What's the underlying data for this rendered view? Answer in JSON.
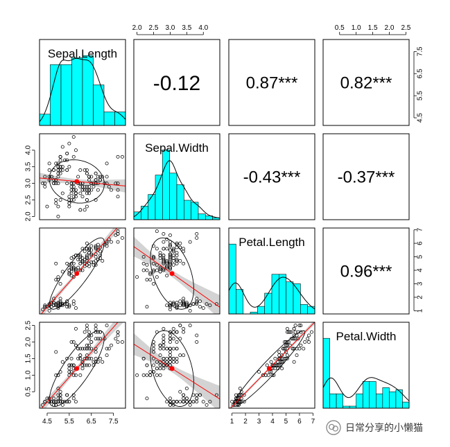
{
  "chart_data": {
    "type": "scatter-matrix",
    "variables": [
      "Sepal.Length",
      "Sepal.Width",
      "Petal.Length",
      "Petal.Width"
    ],
    "ranges": [
      [
        4.3,
        7.9
      ],
      [
        2.0,
        4.4
      ],
      [
        1.0,
        6.9
      ],
      [
        0.1,
        2.5
      ]
    ],
    "ticks": [
      [
        "4.5",
        "5.5",
        "6.5",
        "7.5"
      ],
      [
        "2.0",
        "2.5",
        "3.0",
        "3.5",
        "4.0"
      ],
      [
        "1",
        "2",
        "3",
        "4",
        "5",
        "6",
        "7"
      ],
      [
        "0.5",
        "1.0",
        "1.5",
        "2.0",
        "2.5"
      ]
    ],
    "correlations": [
      {
        "row": 0,
        "col": 1,
        "label": "-0.12"
      },
      {
        "row": 0,
        "col": 2,
        "label": "0.87***"
      },
      {
        "row": 0,
        "col": 3,
        "label": "0.82***"
      },
      {
        "row": 1,
        "col": 2,
        "label": "-0.43***"
      },
      {
        "row": 1,
        "col": 3,
        "label": "-0.37***"
      },
      {
        "row": 2,
        "col": 3,
        "label": "0.96***"
      }
    ],
    "means": [
      5.843,
      3.057,
      3.758,
      1.199
    ],
    "histograms": [
      {
        "breaks": [
          4.0,
          4.5,
          5.0,
          5.5,
          6.0,
          6.5,
          7.0,
          7.5,
          8.0
        ],
        "counts": [
          5,
          27,
          27,
          30,
          31,
          18,
          6,
          6
        ]
      },
      {
        "breaks": [
          2.0,
          2.2,
          2.4,
          2.6,
          2.8,
          3.0,
          3.2,
          3.4,
          3.6,
          3.8,
          4.0,
          4.2,
          4.4
        ],
        "counts": [
          4,
          7,
          13,
          23,
          36,
          24,
          18,
          10,
          9,
          3,
          2,
          1
        ]
      },
      {
        "breaks": [
          1.0,
          1.5,
          2.0,
          2.5,
          3.0,
          3.5,
          4.0,
          4.5,
          5.0,
          5.5,
          6.0,
          6.5,
          7.0
        ],
        "counts": [
          37,
          13,
          0,
          1,
          4,
          11,
          21,
          21,
          17,
          16,
          5,
          4
        ]
      },
      {
        "breaks": [
          0.0,
          0.2,
          0.4,
          0.6,
          0.8,
          1.0,
          1.2,
          1.4,
          1.6,
          1.8,
          2.0,
          2.2,
          2.4,
          2.6
        ],
        "counts": [
          34,
          7,
          7,
          1,
          1,
          7,
          13,
          13,
          7,
          10,
          8,
          9,
          3
        ]
      }
    ],
    "histogram_color": "#00FFFF",
    "smooth_color": "#FF0000",
    "mean_point_color": "#FF0000",
    "ci_band_color": "#D3D3D3",
    "data": [
      [
        5.1,
        3.5,
        1.4,
        0.2
      ],
      [
        4.9,
        3.0,
        1.4,
        0.2
      ],
      [
        4.7,
        3.2,
        1.3,
        0.2
      ],
      [
        4.6,
        3.1,
        1.5,
        0.2
      ],
      [
        5.0,
        3.6,
        1.4,
        0.2
      ],
      [
        5.4,
        3.9,
        1.7,
        0.4
      ],
      [
        4.6,
        3.4,
        1.4,
        0.3
      ],
      [
        5.0,
        3.4,
        1.5,
        0.2
      ],
      [
        4.4,
        2.9,
        1.4,
        0.2
      ],
      [
        4.9,
        3.1,
        1.5,
        0.1
      ],
      [
        5.4,
        3.7,
        1.5,
        0.2
      ],
      [
        4.8,
        3.4,
        1.6,
        0.2
      ],
      [
        4.8,
        3.0,
        1.4,
        0.1
      ],
      [
        4.3,
        3.0,
        1.1,
        0.1
      ],
      [
        5.8,
        4.0,
        1.2,
        0.2
      ],
      [
        5.7,
        4.4,
        1.5,
        0.4
      ],
      [
        5.4,
        3.9,
        1.3,
        0.4
      ],
      [
        5.1,
        3.5,
        1.4,
        0.3
      ],
      [
        5.7,
        3.8,
        1.7,
        0.3
      ],
      [
        5.1,
        3.8,
        1.5,
        0.3
      ],
      [
        5.4,
        3.4,
        1.7,
        0.2
      ],
      [
        5.1,
        3.7,
        1.5,
        0.4
      ],
      [
        4.6,
        3.6,
        1.0,
        0.2
      ],
      [
        5.1,
        3.3,
        1.7,
        0.5
      ],
      [
        4.8,
        3.4,
        1.9,
        0.2
      ],
      [
        5.0,
        3.0,
        1.6,
        0.2
      ],
      [
        5.0,
        3.4,
        1.6,
        0.4
      ],
      [
        5.2,
        3.5,
        1.5,
        0.2
      ],
      [
        5.2,
        3.4,
        1.4,
        0.2
      ],
      [
        4.7,
        3.2,
        1.6,
        0.2
      ],
      [
        4.8,
        3.1,
        1.6,
        0.2
      ],
      [
        5.4,
        3.4,
        1.5,
        0.4
      ],
      [
        5.2,
        4.1,
        1.5,
        0.1
      ],
      [
        5.5,
        4.2,
        1.4,
        0.2
      ],
      [
        4.9,
        3.1,
        1.5,
        0.2
      ],
      [
        5.0,
        3.2,
        1.2,
        0.2
      ],
      [
        5.5,
        3.5,
        1.3,
        0.2
      ],
      [
        4.9,
        3.6,
        1.4,
        0.1
      ],
      [
        4.4,
        3.0,
        1.3,
        0.2
      ],
      [
        5.1,
        3.4,
        1.5,
        0.2
      ],
      [
        5.0,
        3.5,
        1.3,
        0.3
      ],
      [
        4.5,
        2.3,
        1.3,
        0.3
      ],
      [
        4.4,
        3.2,
        1.3,
        0.2
      ],
      [
        5.0,
        3.5,
        1.6,
        0.6
      ],
      [
        5.1,
        3.8,
        1.9,
        0.4
      ],
      [
        4.8,
        3.0,
        1.4,
        0.3
      ],
      [
        5.1,
        3.8,
        1.6,
        0.2
      ],
      [
        4.6,
        3.2,
        1.4,
        0.2
      ],
      [
        5.3,
        3.7,
        1.5,
        0.2
      ],
      [
        5.0,
        3.3,
        1.4,
        0.2
      ],
      [
        7.0,
        3.2,
        4.7,
        1.4
      ],
      [
        6.4,
        3.2,
        4.5,
        1.5
      ],
      [
        6.9,
        3.1,
        4.9,
        1.5
      ],
      [
        5.5,
        2.3,
        4.0,
        1.3
      ],
      [
        6.5,
        2.8,
        4.6,
        1.5
      ],
      [
        5.7,
        2.8,
        4.5,
        1.3
      ],
      [
        6.3,
        3.3,
        4.7,
        1.6
      ],
      [
        4.9,
        2.4,
        3.3,
        1.0
      ],
      [
        6.6,
        2.9,
        4.6,
        1.3
      ],
      [
        5.2,
        2.7,
        3.9,
        1.4
      ],
      [
        5.0,
        2.0,
        3.5,
        1.0
      ],
      [
        5.9,
        3.0,
        4.2,
        1.5
      ],
      [
        6.0,
        2.2,
        4.0,
        1.0
      ],
      [
        6.1,
        2.9,
        4.7,
        1.4
      ],
      [
        5.6,
        2.9,
        3.6,
        1.3
      ],
      [
        6.7,
        3.1,
        4.4,
        1.4
      ],
      [
        5.6,
        3.0,
        4.5,
        1.5
      ],
      [
        5.8,
        2.7,
        4.1,
        1.0
      ],
      [
        6.2,
        2.2,
        4.5,
        1.5
      ],
      [
        5.6,
        2.5,
        3.9,
        1.1
      ],
      [
        5.9,
        3.2,
        4.8,
        1.8
      ],
      [
        6.1,
        2.8,
        4.0,
        1.3
      ],
      [
        6.3,
        2.5,
        4.9,
        1.5
      ],
      [
        6.1,
        2.8,
        4.7,
        1.2
      ],
      [
        6.4,
        2.9,
        4.3,
        1.3
      ],
      [
        6.6,
        3.0,
        4.4,
        1.4
      ],
      [
        6.8,
        2.8,
        4.8,
        1.4
      ],
      [
        6.7,
        3.0,
        5.0,
        1.7
      ],
      [
        6.0,
        2.9,
        4.5,
        1.5
      ],
      [
        5.7,
        2.6,
        3.5,
        1.0
      ],
      [
        5.5,
        2.4,
        3.8,
        1.1
      ],
      [
        5.5,
        2.4,
        3.7,
        1.0
      ],
      [
        5.8,
        2.7,
        3.9,
        1.2
      ],
      [
        6.0,
        2.7,
        5.1,
        1.6
      ],
      [
        5.4,
        3.0,
        4.5,
        1.5
      ],
      [
        6.0,
        3.4,
        4.5,
        1.6
      ],
      [
        6.7,
        3.1,
        4.7,
        1.5
      ],
      [
        6.3,
        2.3,
        4.4,
        1.3
      ],
      [
        5.6,
        3.0,
        4.1,
        1.3
      ],
      [
        5.5,
        2.5,
        4.0,
        1.3
      ],
      [
        5.5,
        2.6,
        4.4,
        1.2
      ],
      [
        6.1,
        3.0,
        4.6,
        1.4
      ],
      [
        5.8,
        2.6,
        4.0,
        1.2
      ],
      [
        5.0,
        2.3,
        3.3,
        1.0
      ],
      [
        5.6,
        2.7,
        4.2,
        1.3
      ],
      [
        5.7,
        3.0,
        4.2,
        1.2
      ],
      [
        5.7,
        2.9,
        4.2,
        1.3
      ],
      [
        6.2,
        2.9,
        4.3,
        1.3
      ],
      [
        5.1,
        2.5,
        3.0,
        1.1
      ],
      [
        5.7,
        2.8,
        4.1,
        1.3
      ],
      [
        6.3,
        3.3,
        6.0,
        2.5
      ],
      [
        5.8,
        2.7,
        5.1,
        1.9
      ],
      [
        7.1,
        3.0,
        5.9,
        2.1
      ],
      [
        6.3,
        2.9,
        5.6,
        1.8
      ],
      [
        6.5,
        3.0,
        5.8,
        2.2
      ],
      [
        7.6,
        3.0,
        6.6,
        2.1
      ],
      [
        4.9,
        2.5,
        4.5,
        1.7
      ],
      [
        7.3,
        2.9,
        6.3,
        1.8
      ],
      [
        6.7,
        2.5,
        5.8,
        1.8
      ],
      [
        7.2,
        3.6,
        6.1,
        2.5
      ],
      [
        6.5,
        3.2,
        5.1,
        2.0
      ],
      [
        6.4,
        2.7,
        5.3,
        1.9
      ],
      [
        6.8,
        3.0,
        5.5,
        2.1
      ],
      [
        5.7,
        2.5,
        5.0,
        2.0
      ],
      [
        5.8,
        2.8,
        5.1,
        2.4
      ],
      [
        6.4,
        3.2,
        5.3,
        2.3
      ],
      [
        6.5,
        3.0,
        5.5,
        1.8
      ],
      [
        7.7,
        3.8,
        6.7,
        2.2
      ],
      [
        7.7,
        2.6,
        6.9,
        2.3
      ],
      [
        6.0,
        2.2,
        5.0,
        1.5
      ],
      [
        6.9,
        3.2,
        5.7,
        2.3
      ],
      [
        5.6,
        2.8,
        4.9,
        2.0
      ],
      [
        7.7,
        2.8,
        6.7,
        2.0
      ],
      [
        6.3,
        2.7,
        4.9,
        1.8
      ],
      [
        6.7,
        3.3,
        5.7,
        2.1
      ],
      [
        7.2,
        3.2,
        6.0,
        1.8
      ],
      [
        6.2,
        2.8,
        4.8,
        1.8
      ],
      [
        6.1,
        3.0,
        4.9,
        1.8
      ],
      [
        6.4,
        2.8,
        5.6,
        2.1
      ],
      [
        7.2,
        3.0,
        5.8,
        1.6
      ],
      [
        7.4,
        2.8,
        6.1,
        1.9
      ],
      [
        7.9,
        3.8,
        6.4,
        2.0
      ],
      [
        6.4,
        2.8,
        5.6,
        2.2
      ],
      [
        6.3,
        2.8,
        5.1,
        1.5
      ],
      [
        6.1,
        2.6,
        5.6,
        1.4
      ],
      [
        7.7,
        3.0,
        6.1,
        2.3
      ],
      [
        6.3,
        3.4,
        5.6,
        2.4
      ],
      [
        6.4,
        3.1,
        5.5,
        1.8
      ],
      [
        6.0,
        3.0,
        4.8,
        1.8
      ],
      [
        6.9,
        3.1,
        5.4,
        2.1
      ],
      [
        6.7,
        3.1,
        5.6,
        2.4
      ],
      [
        6.9,
        3.1,
        5.1,
        2.3
      ],
      [
        5.8,
        2.7,
        5.1,
        1.9
      ],
      [
        6.8,
        3.2,
        5.9,
        2.3
      ],
      [
        6.7,
        3.3,
        5.7,
        2.5
      ],
      [
        6.7,
        3.0,
        5.2,
        2.3
      ],
      [
        6.3,
        2.5,
        5.0,
        1.9
      ],
      [
        6.5,
        3.0,
        5.2,
        2.0
      ],
      [
        6.2,
        3.4,
        5.4,
        2.3
      ],
      [
        5.9,
        3.0,
        5.1,
        1.8
      ]
    ]
  },
  "watermark": {
    "text": "日常分享的小懒猫",
    "icon": "wechat-icon"
  }
}
